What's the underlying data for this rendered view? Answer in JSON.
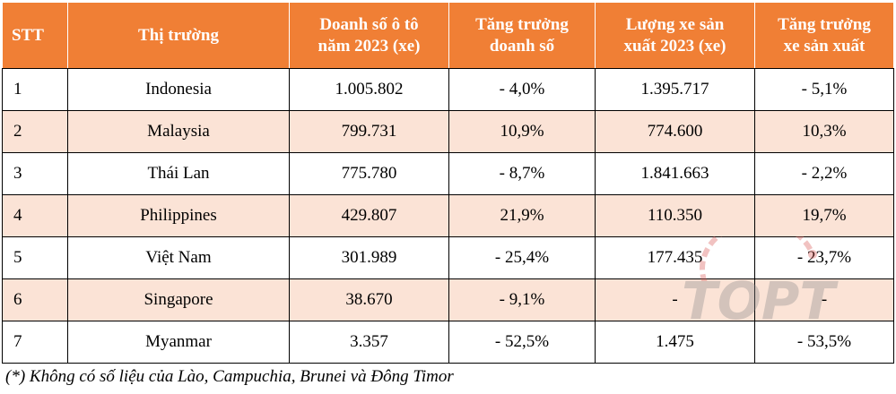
{
  "table": {
    "headers": {
      "stt": "STT",
      "market": "Thị trường",
      "sales_line1": "Doanh số ô tô",
      "sales_line2": "năm 2023 (xe)",
      "sales_growth_line1": "Tăng trưởng",
      "sales_growth_line2": "doanh số",
      "production_line1": "Lượng xe sản",
      "production_line2": "xuất 2023 (xe)",
      "production_growth_line1": "Tăng trưởng",
      "production_growth_line2": "xe sản xuất"
    },
    "rows": [
      {
        "stt": "1",
        "market": "Indonesia",
        "sales": "1.005.802",
        "sales_growth": "- 4,0%",
        "production": "1.395.717",
        "production_growth": "- 5,1%"
      },
      {
        "stt": "2",
        "market": "Malaysia",
        "sales": "799.731",
        "sales_growth": "10,9%",
        "production": "774.600",
        "production_growth": "10,3%"
      },
      {
        "stt": "3",
        "market": "Thái Lan",
        "sales": "775.780",
        "sales_growth": "- 8,7%",
        "production": "1.841.663",
        "production_growth": "- 2,2%"
      },
      {
        "stt": "4",
        "market": "Philippines",
        "sales": "429.807",
        "sales_growth": "21,9%",
        "production": "110.350",
        "production_growth": "19,7%"
      },
      {
        "stt": "5",
        "market": "Việt Nam",
        "sales": "301.989",
        "sales_growth": "- 25,4%",
        "production": "177.435",
        "production_growth": "- 23,7%"
      },
      {
        "stt": "6",
        "market": "Singapore",
        "sales": "38.670",
        "sales_growth": "- 9,1%",
        "production": "-",
        "production_growth": "-"
      },
      {
        "stt": "7",
        "market": "Myanmar",
        "sales": "3.357",
        "sales_growth": "- 52,5%",
        "production": "1.475",
        "production_growth": "- 53,5%"
      }
    ]
  },
  "footnote": "(*) Không có số liệu của Lào, Campuchia, Brunei và Đông Timor",
  "watermark": {
    "text": "TOPT"
  },
  "colors": {
    "header_bg": "#f07f35",
    "header_text": "#ffffff",
    "band_bg": "#fbe3d6",
    "watermark": "#d9534f"
  }
}
